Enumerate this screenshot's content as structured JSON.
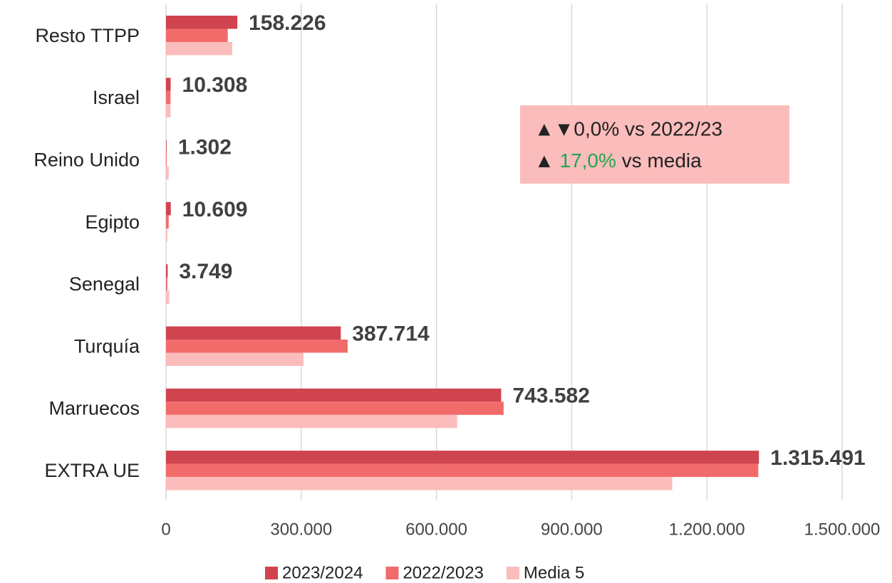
{
  "chart_data": {
    "type": "barh",
    "categories": [
      "Resto TTPP",
      "Israel",
      "Reino Unido",
      "Egipto",
      "Senegal",
      "Turquía",
      "Marruecos",
      "EXTRA UE"
    ],
    "series": [
      {
        "name": "2023/2024",
        "color": "#d0444f",
        "values": [
          158226,
          10308,
          1302,
          10609,
          3749,
          387714,
          743582,
          1315491
        ],
        "value_labels": [
          "158.226",
          "10.308",
          "1.302",
          "10.609",
          "3.749",
          "387.714",
          "743.582",
          "1.315.491"
        ]
      },
      {
        "name": "2022/2023",
        "color": "#f26b6b",
        "values": [
          137000,
          10000,
          1500,
          6000,
          3000,
          403000,
          749000,
          1314000
        ]
      },
      {
        "name": "Media 5",
        "color": "#fbbcbc",
        "values": [
          147000,
          10000,
          6000,
          3000,
          7000,
          305000,
          646000,
          1123000
        ]
      }
    ],
    "xlim": [
      0,
      1500000
    ],
    "xticks": [
      0,
      {
        "value": 300000,
        "label": "300.000"
      },
      {
        "value": 600000,
        "label": "600.000"
      },
      {
        "value": 900000,
        "label": "900.000"
      },
      {
        "value": 1200000,
        "label": "1.200.000"
      },
      {
        "value": 1500000,
        "label": "1.500.000"
      }
    ],
    "grid": true,
    "legend": "bottom",
    "annotation": {
      "line1": "▲▼0,0% vs 2022/23",
      "line2": {
        "prefix": "▲ ",
        "highlight": "17,0%",
        "suffix": " vs media",
        "highlight_color": "#1fa84f"
      },
      "background": "#fbbcbc"
    }
  }
}
